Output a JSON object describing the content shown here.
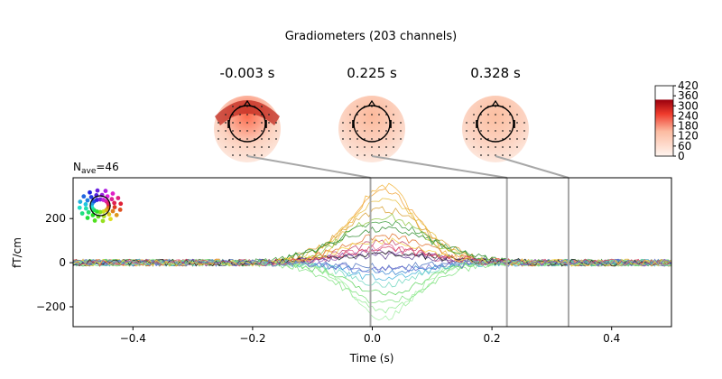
{
  "chart_data": {
    "type": "line",
    "title": "Gradiometers (203 channels)",
    "subtitle_prefix": "N",
    "subtitle_sub": "ave",
    "subtitle_suffix": "=46",
    "xlabel": "Time (s)",
    "ylabel": "fT/cm",
    "xlim": [
      -0.5,
      0.5
    ],
    "ylim": [
      -290,
      385
    ],
    "xticks": [
      -0.4,
      -0.2,
      0.0,
      0.2,
      0.4
    ],
    "xtick_labels": [
      "−0.4",
      "−0.2",
      "0.0",
      "0.2",
      "0.4"
    ],
    "yticks": [
      -200,
      0,
      200
    ],
    "ytick_labels": [
      "−200",
      "0",
      "200"
    ],
    "grid": false,
    "time_markers": [
      -0.003,
      0.225,
      0.328
    ],
    "topomap_labels": [
      "-0.003 s",
      "0.225 s",
      "0.328 s"
    ],
    "topomaps": [
      {
        "time": -0.003,
        "max_intensity": 0.9
      },
      {
        "time": 0.225,
        "max_intensity": 0.25
      },
      {
        "time": 0.328,
        "max_intensity": 0.2
      }
    ],
    "colorbar": {
      "ticks": [
        0,
        60,
        120,
        180,
        240,
        300,
        360,
        420
      ],
      "tick_labels": [
        "0",
        "60",
        "120",
        "180",
        "240",
        "300",
        "360",
        "420"
      ],
      "range": [
        0,
        420
      ],
      "colormap": "Reds"
    },
    "series": [
      {
        "color": "#f2b43a",
        "peak": 350,
        "width": 0.07
      },
      {
        "color": "#f0a030",
        "peak": 320,
        "width": 0.08
      },
      {
        "color": "#e8c040",
        "peak": 280,
        "width": 0.09
      },
      {
        "color": "#d8a030",
        "peak": 240,
        "width": 0.1
      },
      {
        "color": "#8fc640",
        "peak": 210,
        "width": 0.09
      },
      {
        "color": "#3a9a3a",
        "peak": 180,
        "width": 0.11
      },
      {
        "color": "#2e8b2e",
        "peak": 150,
        "width": 0.12
      },
      {
        "color": "#e0702a",
        "peak": 120,
        "width": 0.1
      },
      {
        "color": "#c0406a",
        "peak": 90,
        "width": 0.09
      },
      {
        "color": "#e06090",
        "peak": 70,
        "width": 0.08
      },
      {
        "color": "#9050b0",
        "peak": 50,
        "width": 0.1
      },
      {
        "color": "#5a3a8a",
        "peak": 30,
        "width": 0.12
      },
      {
        "color": "#4a70c0",
        "peak": -20,
        "width": 0.09
      },
      {
        "color": "#3080d0",
        "peak": -40,
        "width": 0.1
      },
      {
        "color": "#40b0d8",
        "peak": -70,
        "width": 0.09
      },
      {
        "color": "#6fd6c0",
        "peak": -100,
        "width": 0.08
      },
      {
        "color": "#5ed45e",
        "peak": -140,
        "width": 0.09
      },
      {
        "color": "#7ee07e",
        "peak": -180,
        "width": 0.1
      },
      {
        "color": "#90ea90",
        "peak": -220,
        "width": 0.08
      },
      {
        "color": "#a6f0a6",
        "peak": -250,
        "width": 0.07
      },
      {
        "color": "#202020",
        "peak": 40,
        "width": 0.13
      },
      {
        "color": "#d84060",
        "peak": 60,
        "width": 0.11
      },
      {
        "color": "#f5d040",
        "peak": 100,
        "width": 0.1
      },
      {
        "color": "#6a6ad0",
        "peak": -30,
        "width": 0.12
      }
    ]
  }
}
